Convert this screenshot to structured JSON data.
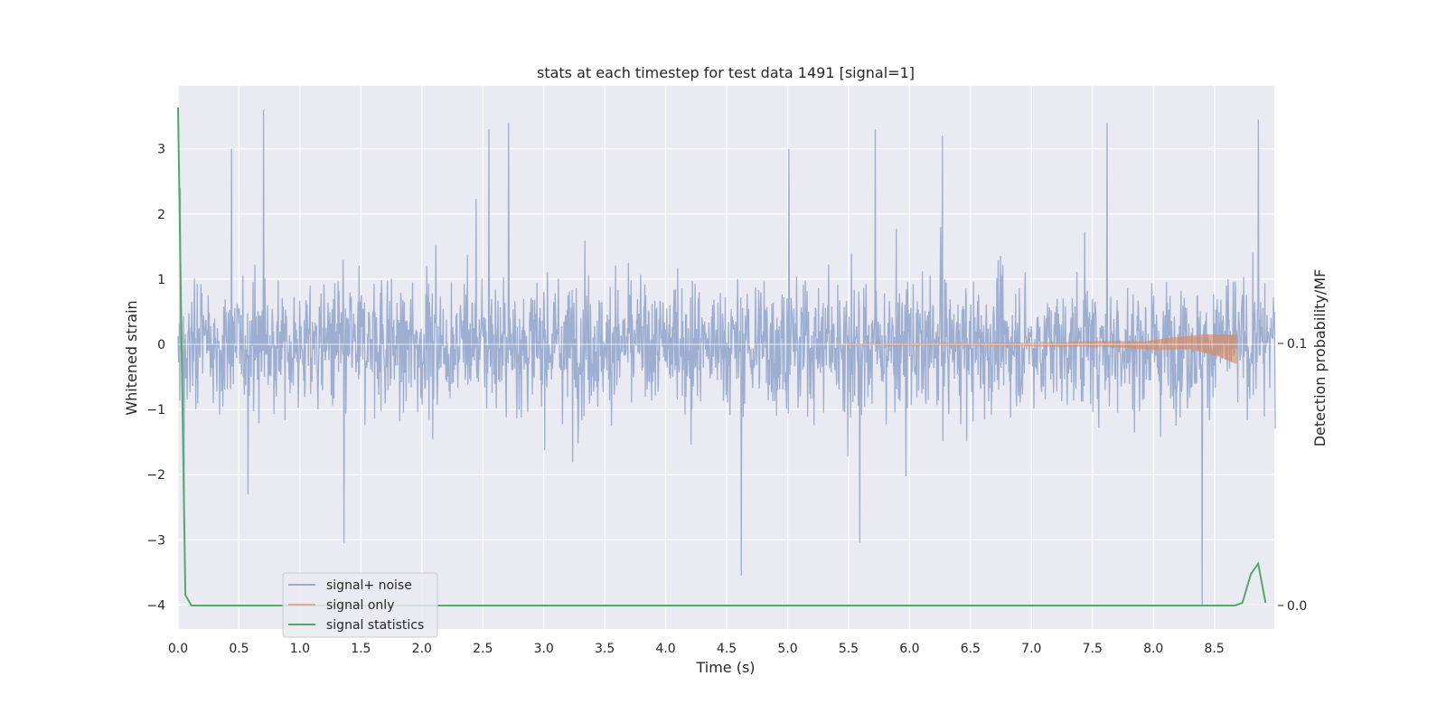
{
  "chart_data": {
    "type": "line",
    "title": "stats at each timestep for test data 1491 [signal=1]",
    "xlabel": "Time (s)",
    "ylabel": "Whitened strain",
    "y2label": "Detection probability/MF",
    "xlim": [
      0.0,
      9.0
    ],
    "ylim": [
      -4.35,
      3.95
    ],
    "y2lim": [
      -0.009,
      0.2
    ],
    "x_ticks": [
      "0.0",
      "0.5",
      "1.0",
      "1.5",
      "2.0",
      "2.5",
      "3.0",
      "3.5",
      "4.0",
      "4.5",
      "5.0",
      "5.5",
      "6.0",
      "6.5",
      "7.0",
      "7.5",
      "8.0",
      "8.5"
    ],
    "y_ticks": [
      "3",
      "2",
      "1",
      "0",
      "−1",
      "−2",
      "−3",
      "−4"
    ],
    "y2_ticks": [
      "0.1",
      "0.0"
    ],
    "grid": true,
    "legend_position": "lower-left",
    "colors": {
      "background": "#eaeaf2",
      "grid": "#ffffff",
      "signal_noise": "#9aabcf",
      "signal_only": "#dd8452",
      "signal_statistics": "#55a868"
    },
    "series": [
      {
        "name": "signal+ noise",
        "description_of_values": "whitened strain noise roughly within ±1.6 with spikes up to 3.6 and down to -4.0",
        "peaks": [
          {
            "x": 0.02,
            "y": 2.4
          },
          {
            "x": 0.44,
            "y": 3.0
          },
          {
            "x": 0.7,
            "y": 3.6
          },
          {
            "x": 2.55,
            "y": 3.3
          },
          {
            "x": 2.71,
            "y": 3.4
          },
          {
            "x": 5.01,
            "y": 3.0
          },
          {
            "x": 5.72,
            "y": 3.3
          },
          {
            "x": 6.27,
            "y": 3.2
          },
          {
            "x": 7.62,
            "y": 3.4
          },
          {
            "x": 8.86,
            "y": 3.45
          },
          {
            "x": 0.05,
            "y": -2.9
          },
          {
            "x": 1.36,
            "y": -3.05
          },
          {
            "x": 4.62,
            "y": -3.55
          },
          {
            "x": 5.59,
            "y": -3.05
          },
          {
            "x": 8.4,
            "y": -4.0
          }
        ]
      },
      {
        "name": "signal only",
        "envelope": [
          [
            5.5,
            0.01
          ],
          [
            7.0,
            0.03
          ],
          [
            7.8,
            0.06
          ],
          [
            8.3,
            0.13
          ],
          [
            8.55,
            0.2
          ],
          [
            8.65,
            0.28
          ],
          [
            8.68,
            0.3
          ]
        ]
      },
      {
        "name": "signal statistics",
        "x": [
          0.0,
          0.06,
          0.11,
          0.2,
          8.6,
          8.67,
          8.73,
          8.8,
          8.86,
          8.92
        ],
        "y": [
          0.19,
          0.004,
          0.0,
          0.0,
          0.0,
          0.0,
          0.001,
          0.012,
          0.016,
          0.001
        ]
      }
    ]
  }
}
